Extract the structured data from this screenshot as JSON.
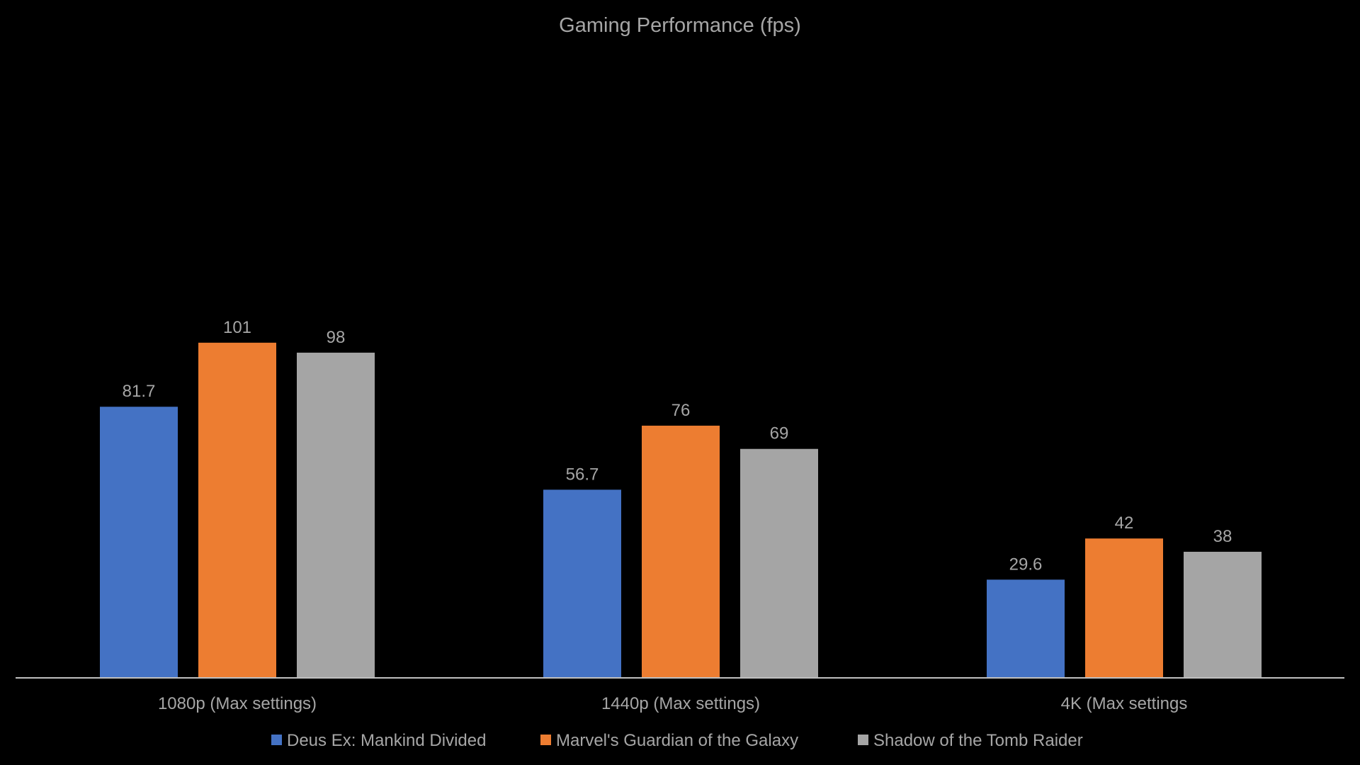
{
  "chart_data": {
    "type": "bar",
    "title": "Gaming Performance (fps)",
    "categories": [
      "1080p (Max settings)",
      "1440p (Max settings)",
      "4K (Max settings"
    ],
    "series": [
      {
        "name": "Deus Ex: Mankind Divided",
        "values": [
          81.7,
          56.7,
          29.6
        ],
        "labels": [
          "81.7",
          "56.7",
          "29.6"
        ],
        "color": "#4472c4"
      },
      {
        "name": "Marvel's Guardian of the Galaxy",
        "values": [
          101,
          76,
          42
        ],
        "labels": [
          "101",
          "76",
          "42"
        ],
        "color": "#ed7d31"
      },
      {
        "name": "Shadow of the Tomb Raider",
        "values": [
          98,
          69,
          38
        ],
        "labels": [
          "98",
          "69",
          "38"
        ],
        "color": "#a5a5a5"
      }
    ],
    "ylim": [
      0,
      120
    ],
    "grid": false,
    "legend": "bottom",
    "background": "#000000",
    "axis_color": "#bfbfbf",
    "text_color": "#a6a6a6"
  }
}
